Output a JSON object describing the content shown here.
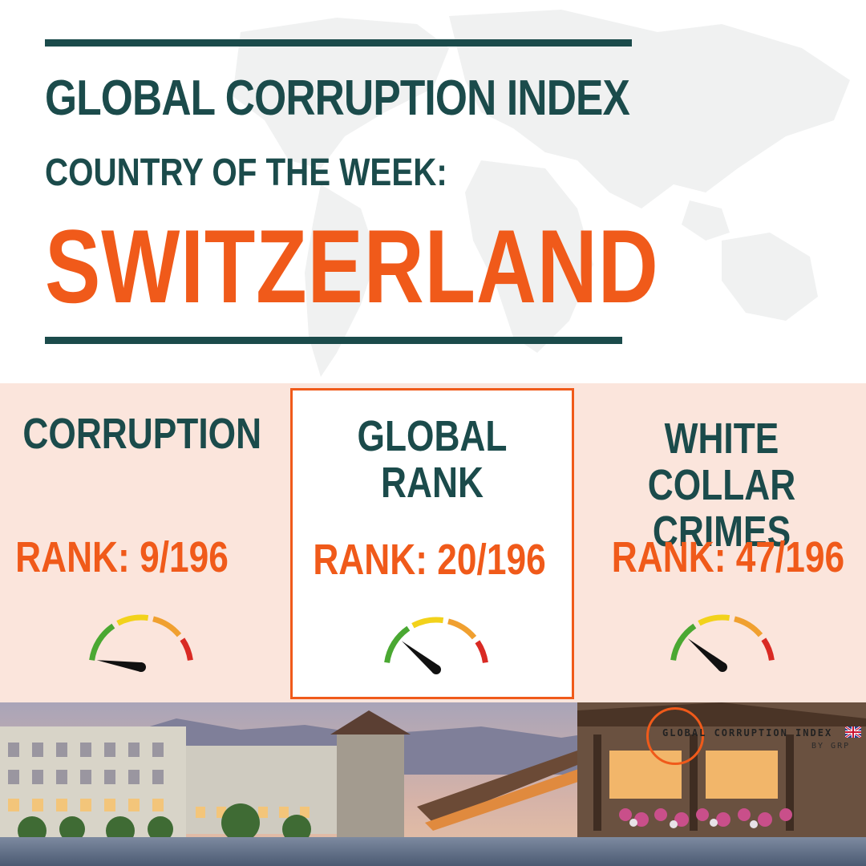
{
  "header": {
    "title": "GLOBAL CORRUPTION INDEX",
    "subtitle": "COUNTRY OF THE WEEK:",
    "country": "SWITZERLAND"
  },
  "cards": [
    {
      "label": "CORRUPTION",
      "rank": "RANK: 9/196",
      "gauge_level": 0.05
    },
    {
      "label": "GLOBAL RANK",
      "rank": "RANK: 20/196",
      "gauge_level": 0.22
    },
    {
      "label": "WHITE COLLAR CRIMES",
      "rank": "RANK: 47/196",
      "gauge_level": 0.22
    }
  ],
  "logo": {
    "text": "GLOBAL CORRUPTION INDEX",
    "byline": "BY GRP",
    "flag_icon": "uk-flag-icon"
  },
  "colors": {
    "dark_teal": "#1b4b4b",
    "accent_orange": "#f05a1a",
    "stats_background": "#fbe5dc",
    "gauge_green": "#4aa832",
    "gauge_yellow": "#f2d21b",
    "gauge_orange": "#f0a030",
    "gauge_red": "#d92a24"
  }
}
